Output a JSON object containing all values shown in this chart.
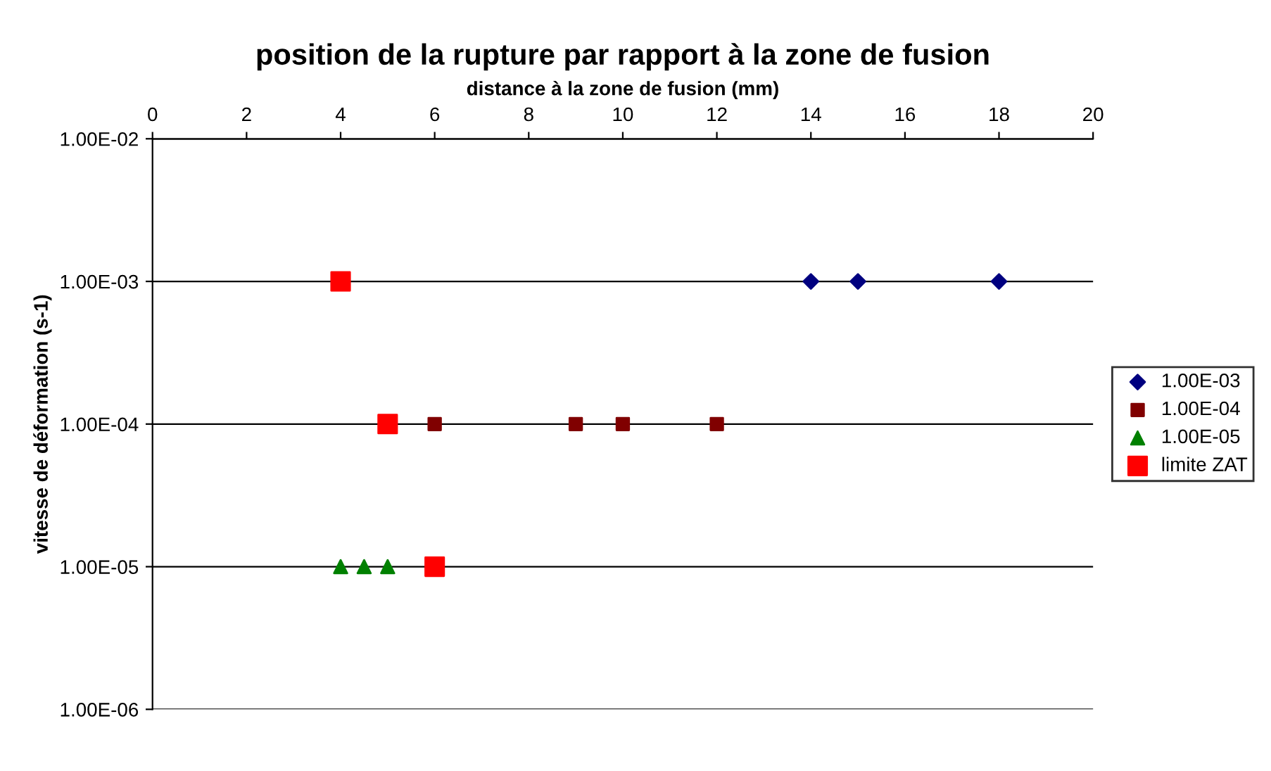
{
  "chart_data": {
    "type": "scatter",
    "title": "position de la rupture par rapport à la zone de fusion",
    "xlabel": "distance à la zone de fusion (mm)",
    "ylabel": "vitesse de déformation (s-1)",
    "log": "y",
    "xlim": [
      0,
      20
    ],
    "xticks": [
      0,
      2,
      4,
      6,
      8,
      10,
      12,
      14,
      16,
      18,
      20
    ],
    "ylim": [
      1e-06,
      0.01
    ],
    "yticks": [
      {
        "value": 1e-06,
        "label": "1.00E-06"
      },
      {
        "value": 1e-05,
        "label": "1.00E-05"
      },
      {
        "value": 0.0001,
        "label": "1.00E-04"
      },
      {
        "value": 0.001,
        "label": "1.00E-03"
      },
      {
        "value": 0.01,
        "label": "1.00E-02"
      }
    ],
    "grid": "y",
    "legend": "right",
    "series": [
      {
        "name": "1.00E-03",
        "color": "#000080",
        "marker": "diamond",
        "x": [
          14,
          15,
          18
        ],
        "values": [
          0.001,
          0.001,
          0.001
        ]
      },
      {
        "name": "1.00E-04",
        "color": "#800000",
        "marker": "square",
        "x": [
          6,
          9,
          10,
          12
        ],
        "values": [
          0.0001,
          0.0001,
          0.0001,
          0.0001
        ]
      },
      {
        "name": "1.00E-05",
        "color": "#008000",
        "marker": "triangle",
        "x": [
          4,
          4.5,
          5
        ],
        "values": [
          1e-05,
          1e-05,
          1e-05
        ]
      },
      {
        "name": "limite ZAT",
        "color": "#ff0000",
        "marker": "square",
        "x": [
          4,
          5,
          6
        ],
        "values": [
          0.001,
          0.0001,
          1e-05
        ]
      }
    ]
  }
}
